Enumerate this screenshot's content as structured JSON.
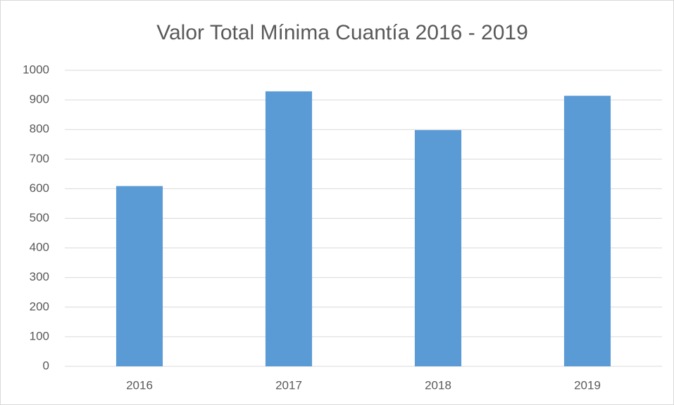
{
  "chart_data": {
    "type": "bar",
    "title": "Valor Total Mínima Cuantía 2016 - 2019",
    "categories": [
      "2016",
      "2017",
      "2018",
      "2019"
    ],
    "values": [
      609,
      929,
      798,
      914
    ],
    "color": "#5b9bd5",
    "ylim": [
      0,
      1000
    ],
    "yticks": [
      0,
      100,
      200,
      300,
      400,
      500,
      600,
      700,
      800,
      900,
      1000
    ],
    "grid": true
  }
}
